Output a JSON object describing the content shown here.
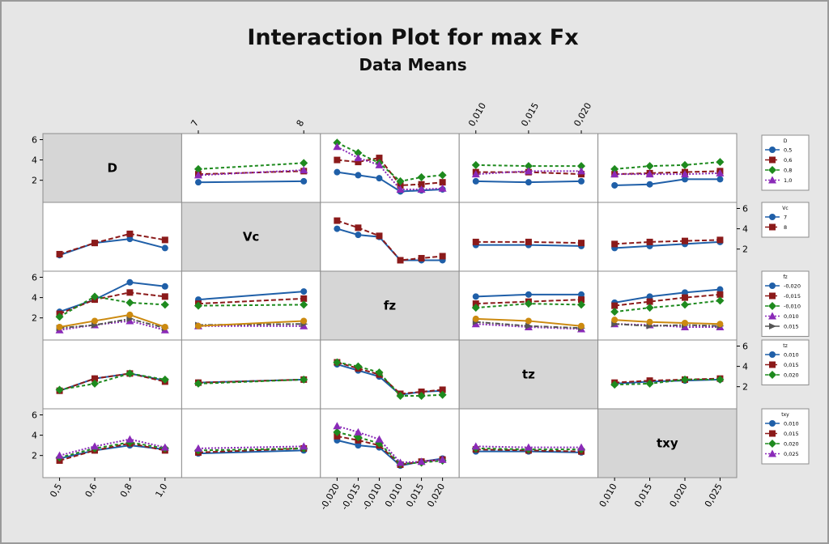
{
  "chart_data": {
    "type": "line",
    "title": "Interaction Plot for max Fx",
    "subtitle": "Data Means",
    "y_ticks": [
      2,
      4,
      6
    ],
    "ylim": [
      0.3,
      6.2
    ],
    "grid": false,
    "legend_placement": "right",
    "factors": [
      {
        "name": "D",
        "levels": [
          "0,5",
          "0,6",
          "0,8",
          "1,0"
        ],
        "colors": [
          "#1f5fa8",
          "#8b1a1a",
          "#1e8a1e",
          "#8a2ab8"
        ],
        "markers": [
          "circle",
          "square",
          "diamond",
          "triangle"
        ]
      },
      {
        "name": "Vc",
        "levels": [
          "7",
          "8"
        ],
        "colors": [
          "#1f5fa8",
          "#8b1a1a"
        ],
        "markers": [
          "circle",
          "square"
        ]
      },
      {
        "name": "fz",
        "levels": [
          "-0,020",
          "-0,015",
          "-0,010",
          "0,010",
          "0,015",
          "0,020"
        ],
        "legend_levels": [
          "-0,020",
          "-0,015",
          "-0,010",
          "0,010",
          "0,015"
        ],
        "colors": [
          "#1f5fa8",
          "#8b1a1a",
          "#1e8a1e",
          "#8a2ab8",
          "#555555",
          "#cc8a10"
        ],
        "markers": [
          "circle",
          "square",
          "diamond",
          "triangle",
          "tri-right",
          "circle"
        ]
      },
      {
        "name": "tz",
        "levels": [
          "0,010",
          "0,015",
          "0,020"
        ],
        "colors": [
          "#1f5fa8",
          "#8b1a1a",
          "#1e8a1e"
        ],
        "markers": [
          "circle",
          "square",
          "diamond"
        ]
      },
      {
        "name": "txy",
        "levels": [
          "0,010",
          "0,015",
          "0,020",
          "0,025"
        ],
        "colors": [
          "#1f5fa8",
          "#8b1a1a",
          "#1e8a1e",
          "#8a2ab8"
        ],
        "markers": [
          "circle",
          "square",
          "diamond",
          "triangle"
        ]
      }
    ],
    "panels": [
      {
        "row": 0,
        "col": 1,
        "series": [
          [
            1.8,
            1.9
          ],
          [
            2.6,
            2.9
          ],
          [
            3.1,
            3.7
          ],
          [
            2.5,
            3.0
          ]
        ]
      },
      {
        "row": 0,
        "col": 2,
        "series": [
          [
            2.8,
            2.5,
            2.2,
            0.9,
            1.0,
            1.1
          ],
          [
            4.0,
            3.8,
            4.2,
            1.5,
            1.6,
            1.8
          ],
          [
            5.7,
            4.7,
            3.7,
            1.9,
            2.3,
            2.5
          ],
          [
            5.3,
            4.2,
            3.5,
            1.1,
            1.1,
            1.2
          ]
        ]
      },
      {
        "row": 0,
        "col": 3,
        "series": [
          [
            1.9,
            1.8,
            1.9
          ],
          [
            2.8,
            2.8,
            2.6
          ],
          [
            3.5,
            3.4,
            3.4
          ],
          [
            2.6,
            2.9,
            2.9
          ]
        ]
      },
      {
        "row": 0,
        "col": 4,
        "series": [
          [
            1.5,
            1.6,
            2.1,
            2.1
          ],
          [
            2.6,
            2.7,
            2.8,
            2.9
          ],
          [
            3.1,
            3.4,
            3.5,
            3.8
          ],
          [
            2.6,
            2.6,
            2.6,
            2.7
          ]
        ]
      },
      {
        "row": 1,
        "col": 0,
        "series": [
          [
            1.4,
            2.6,
            3.0,
            2.1
          ],
          [
            1.5,
            2.6,
            3.5,
            2.9
          ]
        ]
      },
      {
        "row": 1,
        "col": 2,
        "series": [
          [
            4.0,
            3.4,
            3.2,
            0.9,
            0.9,
            0.9
          ],
          [
            4.8,
            4.1,
            3.3,
            0.9,
            1.1,
            1.3
          ]
        ]
      },
      {
        "row": 1,
        "col": 3,
        "series": [
          [
            2.4,
            2.4,
            2.3
          ],
          [
            2.7,
            2.7,
            2.6
          ]
        ]
      },
      {
        "row": 1,
        "col": 4,
        "series": [
          [
            2.1,
            2.3,
            2.5,
            2.7
          ],
          [
            2.5,
            2.7,
            2.8,
            2.9
          ]
        ]
      },
      {
        "row": 2,
        "col": 0,
        "series": [
          [
            2.6,
            3.8,
            5.5,
            5.1
          ],
          [
            2.4,
            3.8,
            4.5,
            4.1
          ],
          [
            2.1,
            4.1,
            3.5,
            3.3
          ],
          [
            0.8,
            1.3,
            1.7,
            0.8
          ],
          [
            1.0,
            1.3,
            1.9,
            1.0
          ],
          [
            1.1,
            1.7,
            2.3,
            1.1
          ]
        ]
      },
      {
        "row": 2,
        "col": 1,
        "series": [
          [
            3.8,
            4.6
          ],
          [
            3.4,
            3.9
          ],
          [
            3.2,
            3.3
          ],
          [
            1.2,
            1.2
          ],
          [
            1.3,
            1.4
          ],
          [
            1.2,
            1.7
          ]
        ]
      },
      {
        "row": 2,
        "col": 3,
        "series": [
          [
            4.1,
            4.3,
            4.3
          ],
          [
            3.4,
            3.6,
            3.8
          ],
          [
            3.0,
            3.4,
            3.3
          ],
          [
            1.4,
            1.1,
            0.9
          ],
          [
            1.6,
            1.2,
            1.0
          ],
          [
            1.9,
            1.7,
            1.2
          ]
        ]
      },
      {
        "row": 2,
        "col": 4,
        "series": [
          [
            3.5,
            4.1,
            4.5,
            4.8
          ],
          [
            3.2,
            3.6,
            4.0,
            4.3
          ],
          [
            2.6,
            3.0,
            3.3,
            3.7
          ],
          [
            1.4,
            1.3,
            1.1,
            1.1
          ],
          [
            1.4,
            1.2,
            1.3,
            1.2
          ],
          [
            1.8,
            1.6,
            1.5,
            1.4
          ]
        ]
      },
      {
        "row": 3,
        "col": 0,
        "series": [
          [
            1.6,
            2.8,
            3.3,
            2.6
          ],
          [
            1.6,
            2.8,
            3.3,
            2.5
          ],
          [
            1.7,
            2.3,
            3.3,
            2.7
          ]
        ]
      },
      {
        "row": 3,
        "col": 1,
        "series": [
          [
            2.4,
            2.7
          ],
          [
            2.4,
            2.7
          ],
          [
            2.3,
            2.7
          ]
        ]
      },
      {
        "row": 3,
        "col": 2,
        "series": [
          [
            4.2,
            3.6,
            3.0,
            1.2,
            1.5,
            1.6
          ],
          [
            4.4,
            3.8,
            3.2,
            1.3,
            1.5,
            1.7
          ],
          [
            4.4,
            4.0,
            3.4,
            1.1,
            1.1,
            1.2
          ]
        ]
      },
      {
        "row": 3,
        "col": 4,
        "series": [
          [
            2.3,
            2.5,
            2.6,
            2.7
          ],
          [
            2.4,
            2.6,
            2.7,
            2.8
          ],
          [
            2.2,
            2.3,
            2.7,
            2.7
          ]
        ]
      },
      {
        "row": 4,
        "col": 0,
        "series": [
          [
            1.7,
            2.5,
            3.0,
            2.6
          ],
          [
            1.5,
            2.5,
            3.2,
            2.5
          ],
          [
            1.8,
            2.7,
            3.3,
            2.7
          ],
          [
            2.0,
            2.9,
            3.6,
            2.8
          ]
        ]
      },
      {
        "row": 4,
        "col": 1,
        "series": [
          [
            2.2,
            2.5
          ],
          [
            2.3,
            2.7
          ],
          [
            2.5,
            2.7
          ],
          [
            2.7,
            2.9
          ]
        ]
      },
      {
        "row": 4,
        "col": 2,
        "series": [
          [
            3.5,
            3.0,
            2.8,
            1.0,
            1.4,
            1.7
          ],
          [
            3.9,
            3.5,
            3.0,
            1.1,
            1.4,
            1.6
          ],
          [
            4.3,
            3.8,
            3.2,
            1.2,
            1.3,
            1.5
          ],
          [
            4.9,
            4.3,
            3.6,
            1.3,
            1.4,
            1.6
          ]
        ]
      },
      {
        "row": 4,
        "col": 3,
        "series": [
          [
            2.4,
            2.4,
            2.3
          ],
          [
            2.6,
            2.5,
            2.4
          ],
          [
            2.7,
            2.6,
            2.6
          ],
          [
            2.9,
            2.8,
            2.8
          ]
        ]
      }
    ]
  }
}
